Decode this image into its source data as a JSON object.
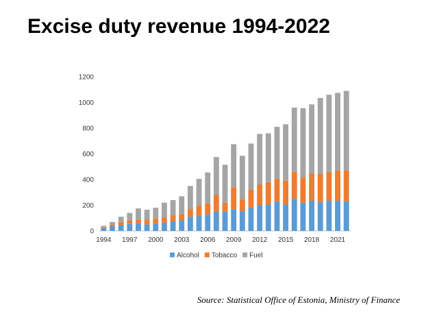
{
  "slide": {
    "title": "Excise duty revenue 1994-2022",
    "source": "Source: Statistical Office of Estonia, Ministry of Finance"
  },
  "chart_data": {
    "type": "bar",
    "stacked": true,
    "categories": [
      "1994",
      "1995",
      "1996",
      "1997",
      "1998",
      "1999",
      "2000",
      "2001",
      "2002",
      "2003",
      "2004",
      "2005",
      "2006",
      "2007",
      "2008",
      "2009",
      "2010",
      "2011",
      "2012",
      "2013",
      "2014",
      "2015",
      "2016",
      "2017",
      "2018",
      "2019",
      "2020",
      "2021",
      "2022"
    ],
    "x_tick_labels": [
      "1994",
      "1997",
      "2000",
      "2003",
      "2006",
      "2009",
      "2012",
      "2015",
      "2018",
      "2021"
    ],
    "series": [
      {
        "name": "Alcohol",
        "color": "#5B9BD5",
        "values": [
          22,
          38,
          45,
          55,
          60,
          50,
          60,
          65,
          75,
          80,
          110,
          115,
          130,
          150,
          150,
          170,
          155,
          180,
          200,
          205,
          230,
          205,
          250,
          220,
          235,
          225,
          235,
          235,
          230
        ]
      },
      {
        "name": "Tobacco",
        "color": "#ED7D31",
        "values": [
          8,
          12,
          25,
          25,
          30,
          35,
          35,
          40,
          45,
          50,
          60,
          80,
          85,
          130,
          70,
          170,
          90,
          140,
          160,
          175,
          175,
          185,
          210,
          195,
          210,
          220,
          225,
          235,
          240
        ]
      },
      {
        "name": "Fuel",
        "color": "#A5A5A5",
        "values": [
          10,
          20,
          40,
          60,
          85,
          80,
          85,
          115,
          120,
          140,
          180,
          210,
          240,
          295,
          295,
          335,
          340,
          360,
          395,
          380,
          405,
          440,
          500,
          540,
          540,
          590,
          600,
          605,
          620
        ]
      }
    ],
    "ylim": [
      0,
      1200
    ],
    "yticks": [
      0,
      200,
      400,
      600,
      800,
      1000,
      1200
    ],
    "xlabel": "",
    "ylabel": "",
    "grid": false,
    "legend": "bottom"
  }
}
